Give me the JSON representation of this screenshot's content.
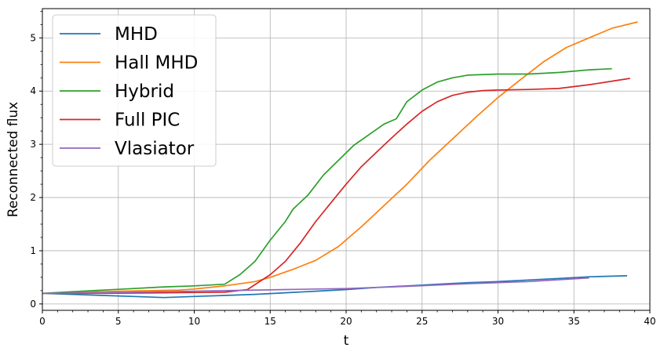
{
  "chart_data": {
    "type": "line",
    "xlabel": "t",
    "ylabel": "Reconnected flux",
    "xlim": [
      0,
      40
    ],
    "ylim": [
      -0.12,
      5.55
    ],
    "x_ticks": [
      0,
      5,
      10,
      15,
      20,
      25,
      30,
      35,
      40
    ],
    "y_ticks": [
      0,
      1,
      2,
      3,
      4,
      5
    ],
    "grid": true,
    "legend_position": "top-left",
    "series": [
      {
        "name": "MHD",
        "color": "#1f77b4",
        "points": [
          [
            0,
            0.2
          ],
          [
            2,
            0.18
          ],
          [
            4,
            0.16
          ],
          [
            6,
            0.14
          ],
          [
            8,
            0.12
          ],
          [
            10,
            0.14
          ],
          [
            12,
            0.16
          ],
          [
            14,
            0.18
          ],
          [
            16,
            0.21
          ],
          [
            18,
            0.24
          ],
          [
            20,
            0.27
          ],
          [
            22,
            0.31
          ],
          [
            24,
            0.34
          ],
          [
            26,
            0.37
          ],
          [
            28,
            0.4
          ],
          [
            30,
            0.42
          ],
          [
            32,
            0.45
          ],
          [
            34,
            0.48
          ],
          [
            36,
            0.51
          ],
          [
            38.5,
            0.53
          ]
        ]
      },
      {
        "name": "Hall MHD",
        "color": "#ff7f0e",
        "points": [
          [
            0,
            0.2
          ],
          [
            5,
            0.24
          ],
          [
            9,
            0.26
          ],
          [
            10,
            0.28
          ],
          [
            12,
            0.34
          ],
          [
            14,
            0.42
          ],
          [
            15,
            0.5
          ],
          [
            16.5,
            0.65
          ],
          [
            18,
            0.82
          ],
          [
            19.5,
            1.08
          ],
          [
            21,
            1.45
          ],
          [
            22.5,
            1.85
          ],
          [
            24,
            2.25
          ],
          [
            25.5,
            2.7
          ],
          [
            27,
            3.1
          ],
          [
            28.5,
            3.5
          ],
          [
            30,
            3.88
          ],
          [
            31.5,
            4.22
          ],
          [
            33,
            4.55
          ],
          [
            34.5,
            4.82
          ],
          [
            36,
            5.0
          ],
          [
            37.5,
            5.18
          ],
          [
            39.2,
            5.3
          ]
        ]
      },
      {
        "name": "Hybrid",
        "color": "#2ca02c",
        "points": [
          [
            0,
            0.2
          ],
          [
            2,
            0.23
          ],
          [
            4,
            0.26
          ],
          [
            6,
            0.29
          ],
          [
            8,
            0.32
          ],
          [
            10,
            0.34
          ],
          [
            12,
            0.37
          ],
          [
            13,
            0.55
          ],
          [
            14,
            0.8
          ],
          [
            15,
            1.2
          ],
          [
            16,
            1.55
          ],
          [
            16.5,
            1.78
          ],
          [
            17.5,
            2.05
          ],
          [
            18.5,
            2.42
          ],
          [
            19.5,
            2.7
          ],
          [
            20.5,
            2.98
          ],
          [
            21.5,
            3.18
          ],
          [
            22.5,
            3.38
          ],
          [
            23.3,
            3.48
          ],
          [
            24,
            3.8
          ],
          [
            25,
            4.02
          ],
          [
            26,
            4.17
          ],
          [
            27,
            4.25
          ],
          [
            28,
            4.3
          ],
          [
            30,
            4.32
          ],
          [
            32,
            4.32
          ],
          [
            34,
            4.35
          ],
          [
            36,
            4.4
          ],
          [
            37.5,
            4.42
          ]
        ]
      },
      {
        "name": "Full PIC",
        "color": "#d62728",
        "points": [
          [
            0,
            0.2
          ],
          [
            4,
            0.2
          ],
          [
            8,
            0.21
          ],
          [
            12,
            0.22
          ],
          [
            13.5,
            0.27
          ],
          [
            15,
            0.55
          ],
          [
            16,
            0.8
          ],
          [
            17,
            1.15
          ],
          [
            18,
            1.55
          ],
          [
            19,
            1.9
          ],
          [
            20,
            2.25
          ],
          [
            21,
            2.58
          ],
          [
            22,
            2.85
          ],
          [
            23,
            3.12
          ],
          [
            24,
            3.38
          ],
          [
            25,
            3.62
          ],
          [
            26,
            3.8
          ],
          [
            27,
            3.92
          ],
          [
            28,
            3.98
          ],
          [
            29,
            4.01
          ],
          [
            30,
            4.02
          ],
          [
            32,
            4.03
          ],
          [
            34,
            4.05
          ],
          [
            36,
            4.12
          ],
          [
            38.7,
            4.24
          ]
        ]
      },
      {
        "name": "Vlasiator",
        "color": "#9467bd",
        "points": [
          [
            0,
            0.2
          ],
          [
            4,
            0.21
          ],
          [
            8,
            0.23
          ],
          [
            12,
            0.25
          ],
          [
            16,
            0.27
          ],
          [
            20,
            0.29
          ],
          [
            24,
            0.33
          ],
          [
            28,
            0.38
          ],
          [
            32,
            0.42
          ],
          [
            36,
            0.49
          ]
        ]
      }
    ]
  }
}
